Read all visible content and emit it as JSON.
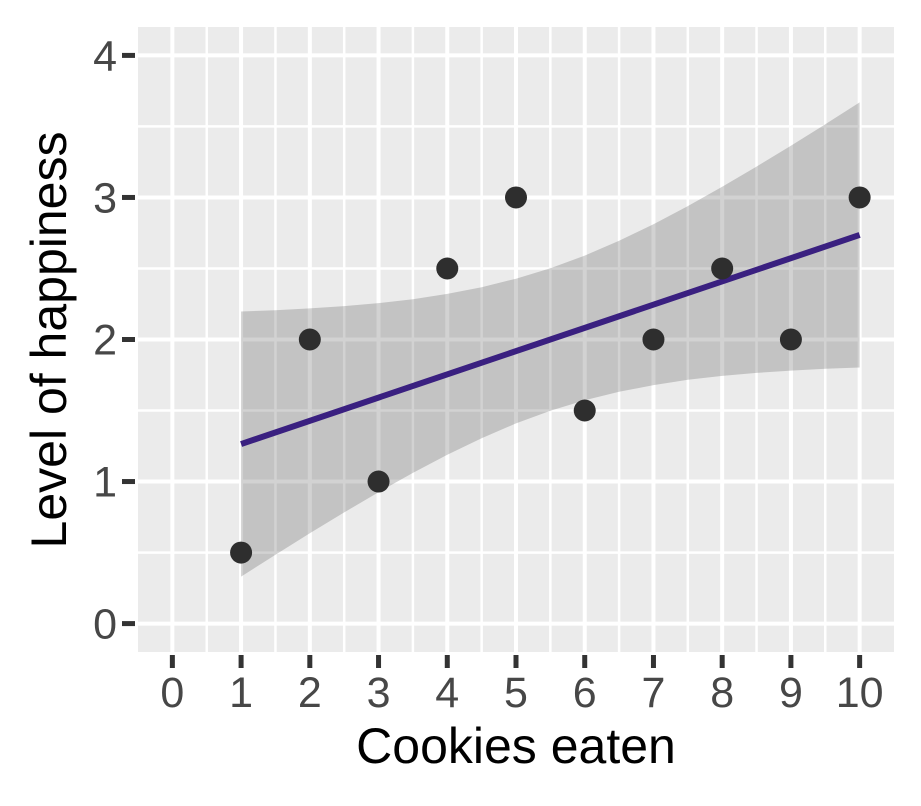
{
  "figure": {
    "background": "#FFFFFF"
  },
  "chart_data": {
    "type": "scatter",
    "title": "",
    "xlabel": "Cookies eaten",
    "ylabel": "Level of happiness",
    "points": {
      "x": [
        1,
        2,
        3,
        4,
        5,
        6,
        7,
        8,
        9,
        10
      ],
      "y": [
        0.5,
        2,
        1,
        2.5,
        3,
        1.5,
        2,
        2.5,
        2,
        3
      ]
    },
    "trend_line": {
      "x": [
        1,
        10
      ],
      "y": [
        1.264,
        2.736
      ],
      "color": "#3A2080",
      "width": 6
    },
    "confidence_band": {
      "x": [
        1,
        1.5,
        2,
        2.5,
        3,
        3.5,
        4,
        4.5,
        5,
        5.5,
        6,
        6.5,
        7,
        7.5,
        8,
        8.5,
        9,
        9.5,
        10
      ],
      "upper": [
        2.197,
        2.206,
        2.219,
        2.235,
        2.256,
        2.284,
        2.321,
        2.368,
        2.428,
        2.502,
        2.591,
        2.695,
        2.812,
        2.939,
        3.075,
        3.217,
        3.364,
        3.515,
        3.669
      ],
      "lower": [
        0.331,
        0.485,
        0.636,
        0.783,
        0.925,
        1.061,
        1.188,
        1.305,
        1.409,
        1.498,
        1.572,
        1.632,
        1.679,
        1.716,
        1.744,
        1.765,
        1.781,
        1.794,
        1.803
      ],
      "fill": "#4D4D4D",
      "opacity": 0.25
    },
    "x_axis": {
      "range": [
        -0.5,
        10.5
      ],
      "ticks": [
        0,
        1,
        2,
        3,
        4,
        5,
        6,
        7,
        8,
        9,
        10
      ],
      "tick_labels": [
        "0",
        "1",
        "2",
        "3",
        "4",
        "5",
        "6",
        "7",
        "8",
        "9",
        "10"
      ],
      "minor": [
        0.5,
        1.5,
        2.5,
        3.5,
        4.5,
        5.5,
        6.5,
        7.5,
        8.5,
        9.5
      ]
    },
    "y_axis": {
      "range": [
        -0.2,
        4.2
      ],
      "ticks": [
        0,
        1,
        2,
        3,
        4
      ],
      "tick_labels": [
        "0",
        "1",
        "2",
        "3",
        "4"
      ],
      "minor": [
        0.5,
        1.5,
        2.5,
        3.5
      ]
    },
    "style": {
      "panel_bg": "#EBEBEB",
      "grid_color": "#FFFFFF",
      "grid_major_width": 4,
      "grid_minor_width": 2.5,
      "point_color": "#2E2E2E",
      "point_radius": 11,
      "tick_mark_color": "#333333",
      "tick_label_color": "#474747",
      "axis_title_color": "#000000"
    },
    "legend": "none",
    "grid": "on"
  }
}
